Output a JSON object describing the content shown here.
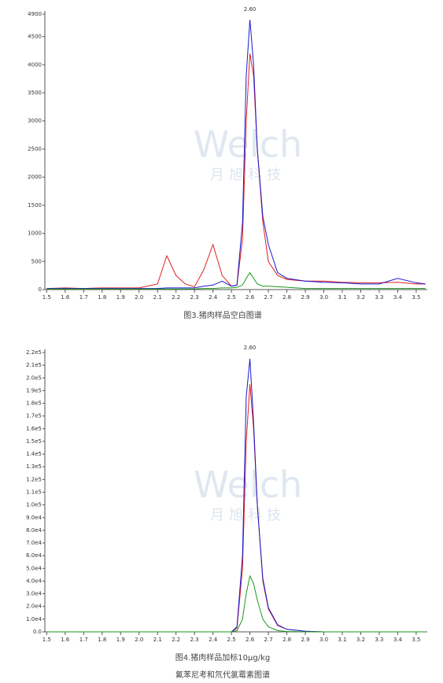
{
  "chart_data": [
    {
      "type": "line",
      "caption": [
        "图3.猪肉样品空白图谱"
      ],
      "watermark": [
        "Welch",
        "月旭科技"
      ],
      "annotations": [
        {
          "x": 2.6,
          "text": "2.60"
        }
      ],
      "x": [
        1.5,
        1.6,
        1.7,
        1.8,
        1.9,
        2.0,
        2.1,
        2.15,
        2.2,
        2.25,
        2.3,
        2.35,
        2.4,
        2.45,
        2.5,
        2.53,
        2.56,
        2.58,
        2.6,
        2.62,
        2.64,
        2.67,
        2.7,
        2.75,
        2.8,
        2.9,
        3.0,
        3.1,
        3.2,
        3.3,
        3.4,
        3.5,
        3.55
      ],
      "series": [
        {
          "color": "#e02020",
          "values": [
            20,
            30,
            20,
            30,
            30,
            30,
            100,
            600,
            250,
            100,
            50,
            350,
            800,
            250,
            60,
            80,
            900,
            3000,
            4200,
            3800,
            2500,
            1200,
            500,
            250,
            180,
            150,
            150,
            130,
            120,
            120,
            130,
            100,
            100
          ]
        },
        {
          "color": "#1a1ad0",
          "values": [
            20,
            20,
            20,
            20,
            20,
            20,
            20,
            30,
            30,
            30,
            30,
            60,
            80,
            150,
            60,
            80,
            1200,
            3800,
            4800,
            4000,
            2500,
            1300,
            800,
            300,
            200,
            150,
            130,
            120,
            100,
            100,
            200,
            120,
            100
          ]
        },
        {
          "color": "#1a9a1a",
          "values": [
            10,
            10,
            10,
            10,
            10,
            10,
            10,
            10,
            10,
            10,
            10,
            20,
            20,
            30,
            30,
            40,
            80,
            200,
            300,
            200,
            100,
            60,
            60,
            50,
            40,
            20,
            20,
            20,
            20,
            20,
            20,
            20,
            20
          ]
        }
      ],
      "xlim": [
        1.49,
        3.56
      ],
      "xticks": [
        1.5,
        1.6,
        1.7,
        1.8,
        1.9,
        {
          "value": 2,
          "label": "2.0"
        },
        2.1,
        2.2,
        2.3,
        2.4,
        2.5,
        2.6,
        2.7,
        2.8,
        2.9,
        {
          "value": 3,
          "label": "3.0"
        },
        3.1,
        3.2,
        3.3,
        3.4,
        3.5
      ],
      "ylim": [
        0,
        4900
      ],
      "yticks": [
        0,
        500,
        1000,
        1500,
        2000,
        2500,
        3000,
        3500,
        4000,
        4500,
        4900
      ]
    },
    {
      "type": "line",
      "caption": [
        "图4.猪肉样品加标10μg/kg",
        "氟苯尼考和氘代氯霉素图谱"
      ],
      "watermark": [
        "Welch",
        "月旭科技"
      ],
      "annotations": [
        {
          "x": 2.6,
          "text": "2.60"
        }
      ],
      "x": [
        1.5,
        1.6,
        1.7,
        1.8,
        1.9,
        2.0,
        2.1,
        2.15,
        2.2,
        2.25,
        2.3,
        2.35,
        2.4,
        2.45,
        2.5,
        2.53,
        2.56,
        2.58,
        2.6,
        2.62,
        2.64,
        2.67,
        2.7,
        2.75,
        2.8,
        2.9,
        3.0,
        3.1,
        3.2,
        3.3,
        3.4,
        3.5,
        3.55
      ],
      "series": [
        {
          "color": "#e02020",
          "values": [
            0,
            0,
            0,
            0,
            0,
            0,
            0,
            0,
            0,
            0,
            0,
            0,
            0,
            0,
            0,
            3000,
            50000,
            150000,
            195000,
            160000,
            100000,
            40000,
            18000,
            5000,
            2000,
            500,
            0,
            0,
            0,
            0,
            0,
            0,
            0
          ]
        },
        {
          "color": "#1a1ad0",
          "values": [
            0,
            0,
            0,
            0,
            0,
            0,
            0,
            0,
            0,
            0,
            0,
            0,
            0,
            0,
            0,
            4000,
            60000,
            185000,
            215000,
            165000,
            100000,
            42000,
            19000,
            5500,
            2000,
            500,
            0,
            0,
            0,
            0,
            0,
            0,
            0
          ]
        },
        {
          "color": "#1a9a1a",
          "values": [
            0,
            0,
            0,
            0,
            0,
            0,
            0,
            0,
            0,
            0,
            0,
            0,
            0,
            0,
            0,
            1000,
            10000,
            30000,
            44000,
            38000,
            25000,
            10000,
            4000,
            1000,
            300,
            0,
            0,
            0,
            0,
            0,
            0,
            0,
            0
          ]
        }
      ],
      "xlim": [
        1.49,
        3.56
      ],
      "xticks": [
        1.5,
        1.6,
        1.7,
        1.8,
        1.9,
        {
          "value": 2,
          "label": "2.0"
        },
        2.1,
        2.2,
        2.3,
        2.4,
        2.5,
        2.6,
        2.7,
        2.8,
        2.9,
        {
          "value": 3,
          "label": "3.0"
        },
        3.1,
        3.2,
        3.3,
        3.4,
        3.5
      ],
      "ylim": [
        0,
        220000
      ],
      "yticks": [
        {
          "value": 0,
          "label": "0.0"
        },
        {
          "value": 10000,
          "label": "1.0e4"
        },
        {
          "value": 20000,
          "label": "2.0e4"
        },
        {
          "value": 30000,
          "label": "3.0e4"
        },
        {
          "value": 40000,
          "label": "4.0e4"
        },
        {
          "value": 50000,
          "label": "5.0e4"
        },
        {
          "value": 60000,
          "label": "6.0e4"
        },
        {
          "value": 70000,
          "label": "7.0e4"
        },
        {
          "value": 80000,
          "label": "8.0e4"
        },
        {
          "value": 90000,
          "label": "9.0e4"
        },
        {
          "value": 100000,
          "label": "1.0e5"
        },
        {
          "value": 110000,
          "label": "1.1e5"
        },
        {
          "value": 120000,
          "label": "1.2e5"
        },
        {
          "value": 130000,
          "label": "1.3e5"
        },
        {
          "value": 140000,
          "label": "1.4e5"
        },
        {
          "value": 150000,
          "label": "1.5e5"
        },
        {
          "value": 160000,
          "label": "1.6e5"
        },
        {
          "value": 170000,
          "label": "1.7e5"
        },
        {
          "value": 180000,
          "label": "1.8e5"
        },
        {
          "value": 190000,
          "label": "1.9e5"
        },
        {
          "value": 200000,
          "label": "2.0e5"
        },
        {
          "value": 210000,
          "label": "2.1e5"
        },
        {
          "value": 220000,
          "label": "2.2e5"
        }
      ]
    }
  ]
}
